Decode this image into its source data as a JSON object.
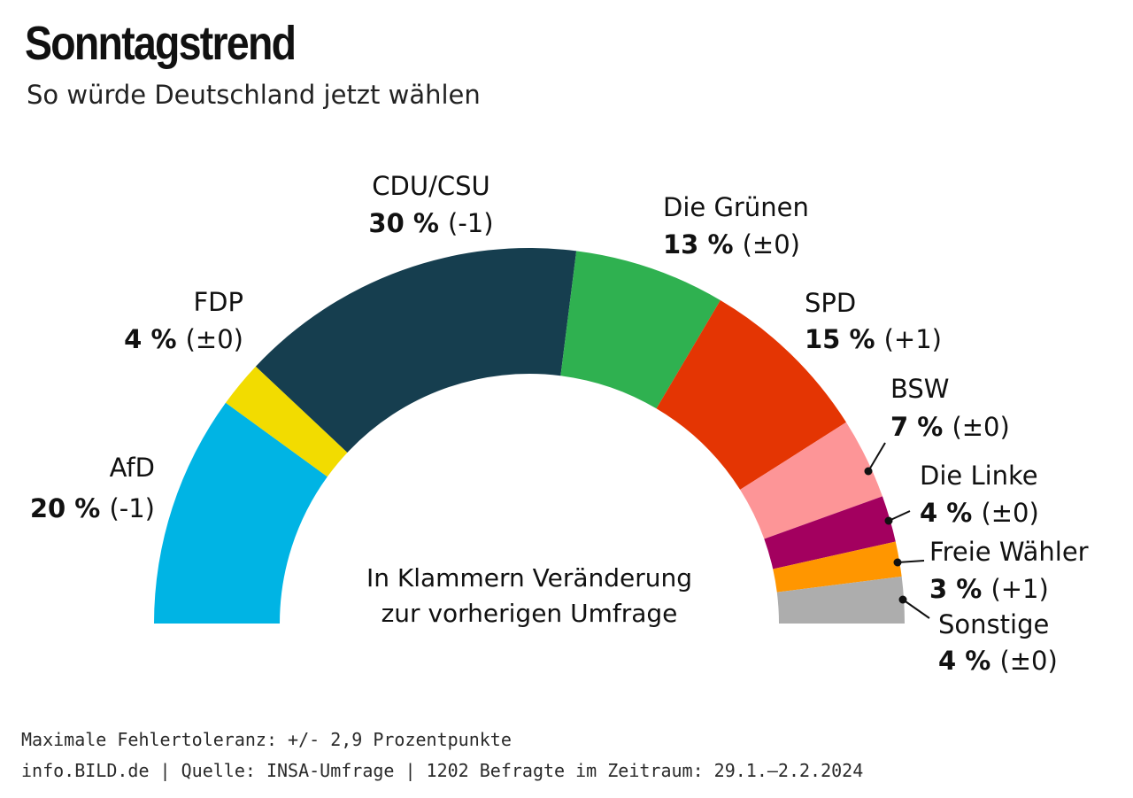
{
  "header": {
    "title": "Sonntagstrend",
    "subtitle": "So würde Deutschland jetzt wählen"
  },
  "note": {
    "line1": "In Klammern Veränderung",
    "line2": "zur vorherigen Umfrage"
  },
  "footer": {
    "line1": "Maximale Fehlertoleranz: +/- 2,9 Prozentpunkte",
    "line2": "info.BILD.de | Quelle: INSA-Umfrage | 1202 Befragte im Zeitraum: 29.1.–2.2.2024"
  },
  "chart_data": {
    "type": "pie",
    "subtype": "half-donut",
    "unit": "%",
    "slices": [
      {
        "name": "AfD",
        "value": 20,
        "value_label": "20 %",
        "change": "(-1)",
        "color": "#00b4e4"
      },
      {
        "name": "FDP",
        "value": 4,
        "value_label": "4 %",
        "change": "(±0)",
        "color": "#f2dc00"
      },
      {
        "name": "CDU/CSU",
        "value": 30,
        "value_label": "30 %",
        "change": "(-1)",
        "color": "#163e4f"
      },
      {
        "name": "Die Grünen",
        "value": 13,
        "value_label": "13 %",
        "change": "(±0)",
        "color": "#2fb150"
      },
      {
        "name": "SPD",
        "value": 15,
        "value_label": "15 %",
        "change": "(+1)",
        "color": "#e43503"
      },
      {
        "name": "BSW",
        "value": 7,
        "value_label": "7 %",
        "change": "(±0)",
        "color": "#fd9597"
      },
      {
        "name": "Die Linke",
        "value": 4,
        "value_label": "4 %",
        "change": "(±0)",
        "color": "#a3005f"
      },
      {
        "name": "Freie Wähler",
        "value": 3,
        "value_label": "3 %",
        "change": "(+1)",
        "color": "#ff9600"
      },
      {
        "name": "Sonstige",
        "value": 4,
        "value_label": "4 %",
        "change": "(±0)",
        "color": "#adadad"
      }
    ]
  }
}
